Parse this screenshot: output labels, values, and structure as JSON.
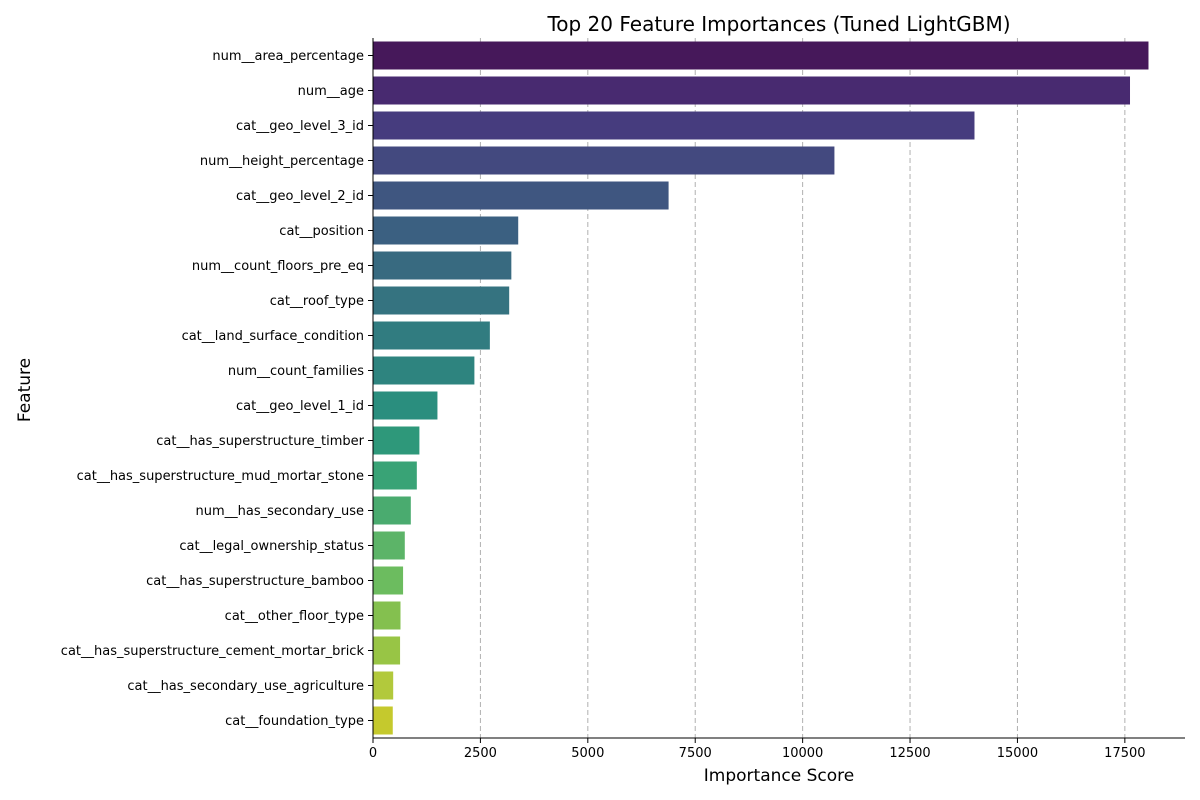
{
  "chart_data": {
    "type": "bar",
    "orientation": "horizontal",
    "title": "Top 20 Feature Importances (Tuned LightGBM)",
    "xlabel": "Importance Score",
    "ylabel": "Feature",
    "xlim": [
      0,
      18900
    ],
    "xticks": [
      0,
      2500,
      5000,
      7500,
      10000,
      12500,
      15000,
      17500
    ],
    "xtick_labels": [
      "0",
      "2500",
      "5000",
      "7500",
      "10000",
      "12500",
      "15000",
      "17500"
    ],
    "grid": "x-axis dashed",
    "colormap": "viridis",
    "categories": [
      "num__area_percentage",
      "num__age",
      "cat__geo_level_3_id",
      "num__height_percentage",
      "cat__geo_level_2_id",
      "cat__position",
      "num__count_floors_pre_eq",
      "cat__roof_type",
      "cat__land_surface_condition",
      "num__count_families",
      "cat__geo_level_1_id",
      "cat__has_superstructure_timber",
      "cat__has_superstructure_mud_mortar_stone",
      "num__has_secondary_use",
      "cat__legal_ownership_status",
      "cat__has_superstructure_bamboo",
      "cat__other_floor_type",
      "cat__has_superstructure_cement_mortar_brick",
      "cat__has_secondary_use_agriculture",
      "cat__foundation_type"
    ],
    "values": [
      18050,
      17620,
      14000,
      10740,
      6880,
      3380,
      3220,
      3170,
      2720,
      2360,
      1500,
      1080,
      1020,
      880,
      740,
      700,
      640,
      630,
      470,
      460
    ],
    "colors": [
      "#46185a",
      "#482a70",
      "#463c7e",
      "#43497f",
      "#3f5680",
      "#3b6081",
      "#386a80",
      "#357380",
      "#317c80",
      "#2e847f",
      "#2a8e7e",
      "#2e987a",
      "#39a376",
      "#4aab6f",
      "#5cb468",
      "#6cbc5f",
      "#84c04f",
      "#98c545",
      "#b2c93c",
      "#c5c92d"
    ]
  }
}
